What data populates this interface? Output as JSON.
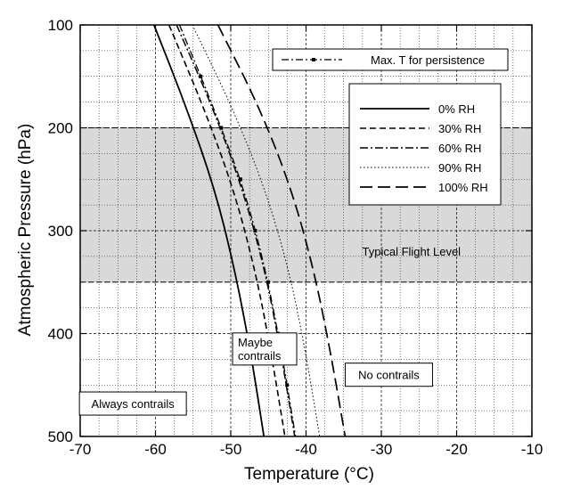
{
  "chart_data": {
    "type": "line",
    "xlabel": "Temperature (°C)",
    "ylabel": "Atmospheric Pressure (hPa)",
    "xlim": [
      -70,
      -10
    ],
    "ylim": [
      500,
      100
    ],
    "y_inverted": true,
    "x_ticks": [
      -70,
      -60,
      -50,
      -40,
      -30,
      -20,
      -10
    ],
    "y_ticks": [
      100,
      200,
      300,
      400,
      500
    ],
    "grid": true,
    "shaded_band": {
      "from": 200,
      "to": 350,
      "color": "#d9d9d9"
    },
    "series": [
      {
        "name": "0% RH",
        "style": "solid",
        "x": [
          -60.2,
          -55.9,
          -52.1,
          -49.4,
          -47.3,
          -45.6
        ],
        "y": [
          100,
          180,
          260,
          340,
          420,
          500
        ]
      },
      {
        "name": "30% RH",
        "style": "dash",
        "x": [
          -58.2,
          -53.6,
          -49.6,
          -46.7,
          -44.6,
          -42.8
        ],
        "y": [
          100,
          180,
          260,
          340,
          420,
          500
        ]
      },
      {
        "name": "60% RH",
        "style": "dashdot",
        "x": [
          -57.2,
          -52.4,
          -48.4,
          -45.4,
          -43.3,
          -41.5
        ],
        "y": [
          100,
          180,
          260,
          340,
          420,
          500
        ]
      },
      {
        "name": "90% RH",
        "style": "dot",
        "x": [
          -55.1,
          -49.8,
          -45.4,
          -42.2,
          -40.0,
          -38.2
        ],
        "y": [
          100,
          180,
          260,
          340,
          420,
          500
        ]
      },
      {
        "name": "100% RH",
        "style": "longdash",
        "x": [
          -51.7,
          -46.2,
          -41.9,
          -38.9,
          -36.7,
          -34.8
        ],
        "y": [
          100,
          180,
          260,
          340,
          420,
          500
        ]
      },
      {
        "name": "Max. T for persistence",
        "style": "dashdot-marker",
        "x": [
          -56.8,
          -52.3,
          -48.2,
          -45.3,
          -43.2,
          -41.4
        ],
        "y": [
          100,
          180,
          260,
          340,
          420,
          500
        ],
        "markers_y": [
          150,
          200,
          250,
          300,
          350,
          400,
          450
        ]
      }
    ],
    "legend": {
      "position": "top-right",
      "entries": [
        "0% RH",
        "30% RH",
        "60% RH",
        "90% RH",
        "100% RH"
      ],
      "persistence_label": "Max. T for persistence"
    },
    "annotations": [
      {
        "text": "Typical Flight Level",
        "x": -26,
        "y": 320
      },
      {
        "text": "Maybe contrails",
        "x": -45.5,
        "y": 415
      },
      {
        "text": "No contrails",
        "x": -29,
        "y": 440
      },
      {
        "text": "Always contrails",
        "x": -63,
        "y": 468
      }
    ]
  },
  "colors": {
    "shade": "#d9d9d9",
    "grid": "#000000",
    "line": "#000000",
    "background": "#ffffff"
  }
}
